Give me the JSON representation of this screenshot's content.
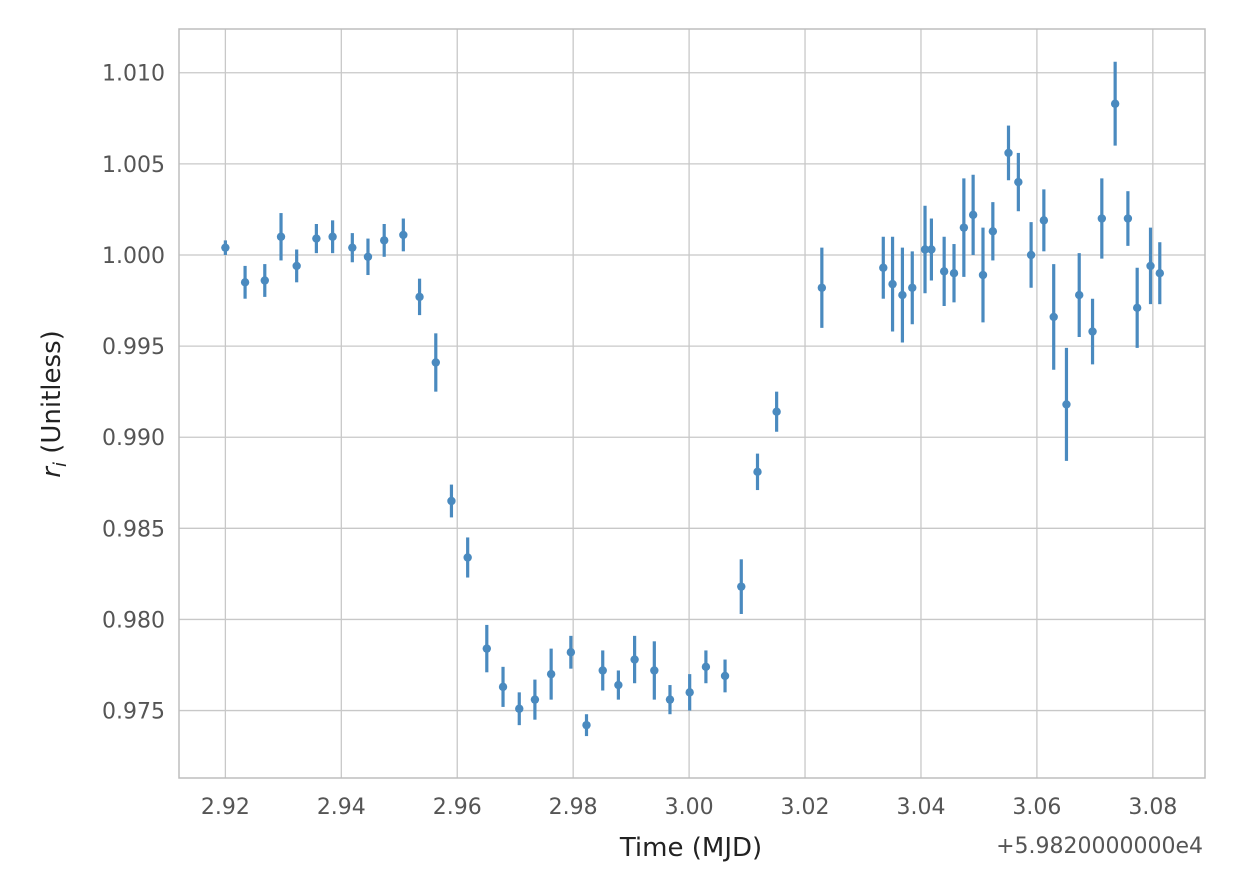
{
  "chart_data": {
    "type": "scatter",
    "xlabel": "Time (MJD)",
    "ylabel_symbol": "r",
    "ylabel_subscript": "i",
    "ylabel_suffix": " (Unitless)",
    "x_offset_label": "+5.9820000000e4",
    "x_offset": 59820,
    "xlim": [
      2.912,
      3.089
    ],
    "ylim": [
      0.9713,
      1.0124
    ],
    "xticks": [
      2.92,
      2.94,
      2.96,
      2.98,
      3.0,
      3.02,
      3.04,
      3.06,
      3.08
    ],
    "xtick_labels": [
      "2.92",
      "2.94",
      "2.96",
      "2.98",
      "3.00",
      "3.02",
      "3.04",
      "3.06",
      "3.08"
    ],
    "yticks": [
      0.975,
      0.98,
      0.985,
      0.99,
      0.995,
      1.0,
      1.005,
      1.01
    ],
    "ytick_labels": [
      "0.975",
      "0.980",
      "0.985",
      "0.990",
      "0.995",
      "1.000",
      "1.005",
      "1.010"
    ],
    "grid": true,
    "color": "#4a8abf",
    "series": [
      {
        "x": [
          2.92,
          2.9234,
          2.9268,
          2.9296,
          2.9323,
          2.9357,
          2.9385,
          2.9419,
          2.9446,
          2.9474,
          2.9507,
          2.9535,
          2.9563,
          2.959,
          2.9618,
          2.9651,
          2.9679,
          2.9707,
          2.9734,
          2.9762,
          2.9796,
          2.9823,
          2.9851,
          2.9878,
          2.9906,
          2.994,
          2.9967,
          3.0001,
          3.0029,
          3.0062,
          3.009,
          3.0118,
          3.0151,
          3.0229,
          3.0335,
          3.0351,
          3.0368,
          3.0385,
          3.0407,
          3.0418,
          3.044,
          3.0457,
          3.0474,
          3.049,
          3.0507,
          3.0524,
          3.0551,
          3.0568,
          3.059,
          3.0612,
          3.0629,
          3.0651,
          3.0673,
          3.0696,
          3.0712,
          3.0735,
          3.0757,
          3.0773,
          3.0796,
          3.0812
        ],
        "y": [
          1.0004,
          0.9985,
          0.9986,
          1.001,
          0.9994,
          1.0009,
          1.001,
          1.0004,
          0.9999,
          1.0008,
          1.0011,
          0.9977,
          0.9941,
          0.9865,
          0.9834,
          0.9784,
          0.9763,
          0.9751,
          0.9756,
          0.977,
          0.9782,
          0.9742,
          0.9772,
          0.9764,
          0.9778,
          0.9772,
          0.9756,
          0.976,
          0.9774,
          0.9769,
          0.9818,
          0.9881,
          0.9914,
          0.9982,
          0.9993,
          0.9984,
          0.9978,
          0.9982,
          1.0003,
          1.0003,
          0.9991,
          0.999,
          1.0015,
          1.0022,
          0.9989,
          1.0013,
          1.0056,
          1.004,
          1.0,
          1.0019,
          0.9966,
          0.9918,
          0.9978,
          0.9958,
          1.002,
          1.0083,
          1.002,
          0.9971,
          0.9994,
          0.999
        ],
        "yerr": [
          0.0004,
          0.0009,
          0.0009,
          0.0013,
          0.0009,
          0.0008,
          0.0009,
          0.0008,
          0.001,
          0.0009,
          0.0009,
          0.001,
          0.0016,
          0.0009,
          0.0011,
          0.0013,
          0.0011,
          0.0009,
          0.0011,
          0.0014,
          0.0009,
          0.0006,
          0.0011,
          0.0008,
          0.0013,
          0.0016,
          0.0008,
          0.001,
          0.0009,
          0.0009,
          0.0015,
          0.001,
          0.0011,
          0.0022,
          0.0017,
          0.0026,
          0.0026,
          0.002,
          0.0024,
          0.0017,
          0.0019,
          0.0016,
          0.0027,
          0.0022,
          0.0026,
          0.0016,
          0.0015,
          0.0016,
          0.0018,
          0.0017,
          0.0029,
          0.0031,
          0.0023,
          0.0018,
          0.0022,
          0.0023,
          0.0015,
          0.0022,
          0.0021,
          0.0017
        ]
      }
    ]
  }
}
